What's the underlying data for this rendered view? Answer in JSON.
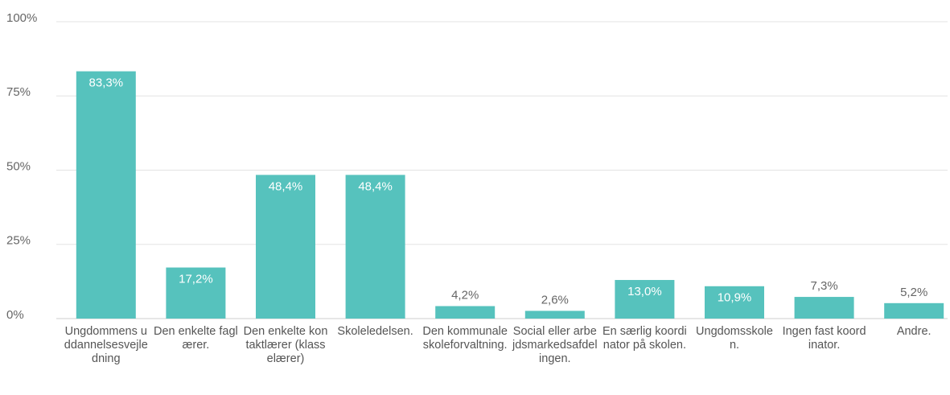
{
  "chart_data": {
    "type": "bar",
    "categories": [
      "Ungdommens uddannelsesvejledning",
      "Den enkelte faglærer.",
      "Den enkelte kontaktlærer (klasselærer)",
      "Skoleledelsen.",
      "Den kommunale skoleforvaltning.",
      "Social eller arbejdsmarkedsafdelingen.",
      "En særlig koordinator på skolen.",
      "Ungdomsskolen.",
      "Ingen fast koordinator.",
      "Andre."
    ],
    "values": [
      83.3,
      17.2,
      48.4,
      48.4,
      4.2,
      2.6,
      13.0,
      10.9,
      7.3,
      5.2
    ],
    "value_labels": [
      "83,3%",
      "17,2%",
      "48,4%",
      "48,4%",
      "4,2%",
      "2,6%",
      "13,0%",
      "10,9%",
      "7,3%",
      "5,2%"
    ],
    "color": "#56c2bd",
    "ylim": [
      0,
      100
    ],
    "yticks": [
      {
        "value": 0,
        "label": "0%"
      },
      {
        "value": 25,
        "label": "25%"
      },
      {
        "value": 50,
        "label": "50%"
      },
      {
        "value": 75,
        "label": "75%"
      },
      {
        "value": 100,
        "label": "100%"
      }
    ],
    "grid": true
  }
}
